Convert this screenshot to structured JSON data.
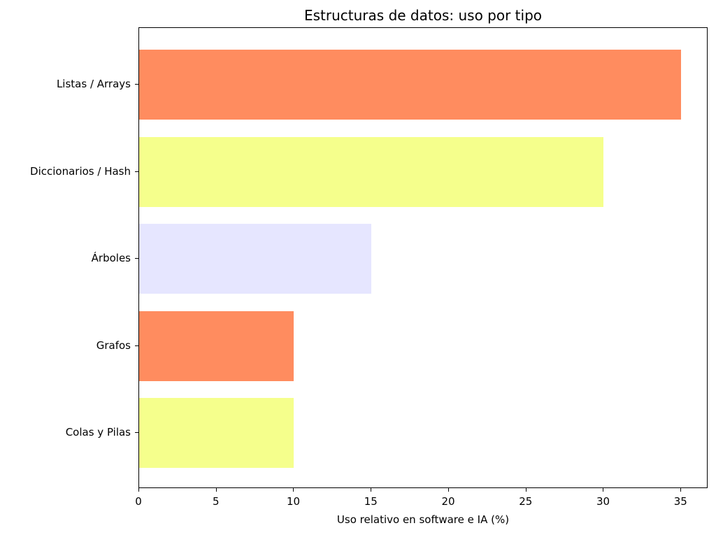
{
  "chart_data": {
    "type": "bar",
    "orientation": "horizontal",
    "title": "Estructuras de datos: uso por tipo",
    "xlabel": "Uso relativo en software e IA (%)",
    "ylabel": "",
    "xlim": [
      0,
      36.75
    ],
    "xticks": [
      0,
      5,
      10,
      15,
      20,
      25,
      30,
      35
    ],
    "grid": false,
    "legend": null,
    "categories": [
      "Listas / Arrays",
      "Diccionarios / Hash",
      "Árboles",
      "Grafos",
      "Colas y Pilas"
    ],
    "values": [
      35,
      30,
      15,
      10,
      10
    ],
    "colors": [
      "#FF8C5F",
      "#F5FF8C",
      "#E6E6FF",
      "#FF8C5F",
      "#F5FF8C"
    ]
  }
}
